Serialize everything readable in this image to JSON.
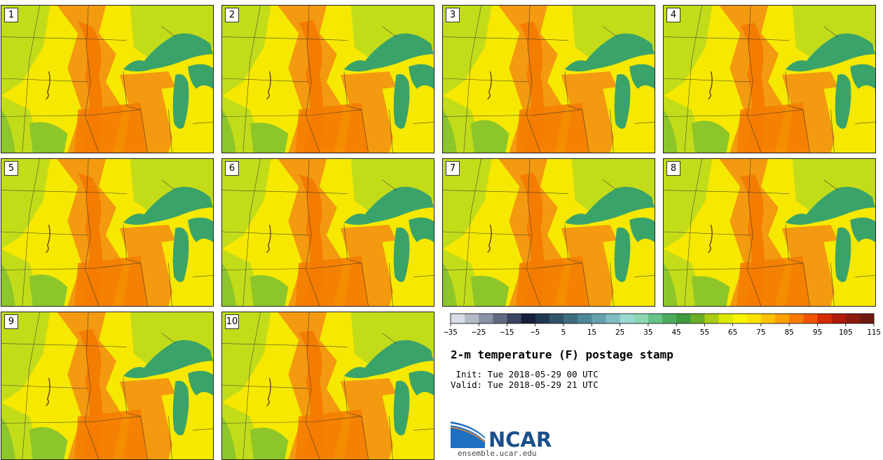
{
  "members": [
    "1",
    "2",
    "3",
    "4",
    "5",
    "6",
    "7",
    "8",
    "9",
    "10"
  ],
  "title": "2-m temperature (F) postage stamp",
  "init_line": " Init: Tue 2018-05-29 00 UTC",
  "valid_line": "Valid: Tue 2018-05-29 21 UTC",
  "logo_text": "NCAR",
  "website": "ensemble.ucar.edu",
  "colorbar": {
    "tick_labels": [
      "-35",
      "-25",
      "-15",
      "-5",
      "5",
      "15",
      "25",
      "35",
      "45",
      "55",
      "65",
      "75",
      "85",
      "95",
      "105",
      "115"
    ],
    "colors": [
      "#d9dde6",
      "#b3b9c6",
      "#8a93a6",
      "#606b83",
      "#3a4660",
      "#162039",
      "#1f3850",
      "#2f5467",
      "#3d6d7f",
      "#4e8797",
      "#63a2ae",
      "#7fbdc2",
      "#98dad2",
      "#8cd7b2",
      "#66c48a",
      "#4eab5f",
      "#3f9a3b",
      "#6cae27",
      "#a8cc14",
      "#dbe800",
      "#f6f400",
      "#fde100",
      "#fcc100",
      "#fba000",
      "#f87b00",
      "#f05400",
      "#d62a00",
      "#b01b08",
      "#8c1a0c",
      "#6e1a10"
    ]
  },
  "colors": {
    "lake": "#3aa36a",
    "warm": "#f39a10",
    "hot": "#f47c00",
    "mild": "#f6e800",
    "cool": "#c3dc1a",
    "cooler": "#8cc62a"
  }
}
